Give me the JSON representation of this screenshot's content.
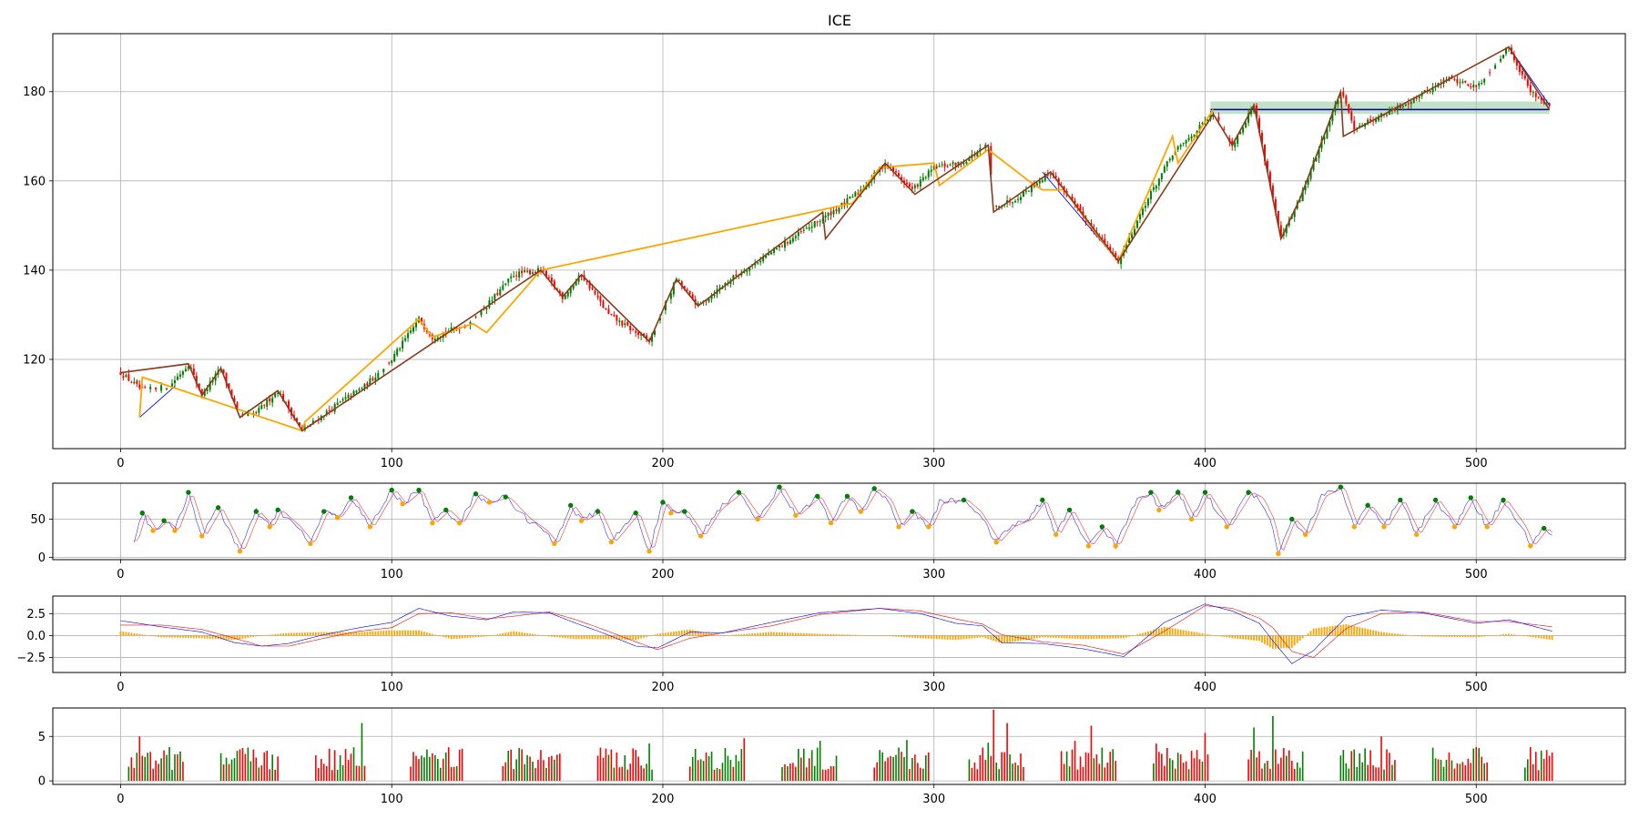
{
  "chart_data": [
    {
      "panel": "price",
      "type": "candlestick",
      "title": "ICE",
      "xlim": [
        -25,
        555
      ],
      "ylim": [
        100,
        193
      ],
      "xticks": [
        0,
        100,
        200,
        300,
        400,
        500
      ],
      "yticks": [
        120,
        140,
        160,
        180
      ],
      "grid": true,
      "colors": {
        "up": "#008000",
        "down": "#ff0000",
        "zigzag_major": "#8b3a1a",
        "zigzag_minor": "#ffa500",
        "trend": "#0000ff",
        "support_line": "#00008b",
        "support_band": "#8fc9a0"
      },
      "anchors": [
        [
          0,
          117
        ],
        [
          8,
          113
        ],
        [
          18,
          114
        ],
        [
          25,
          119
        ],
        [
          30,
          112
        ],
        [
          37,
          118
        ],
        [
          44,
          107
        ],
        [
          50,
          108
        ],
        [
          58,
          113
        ],
        [
          67,
          104
        ],
        [
          80,
          110
        ],
        [
          90,
          114
        ],
        [
          100,
          120
        ],
        [
          110,
          129
        ],
        [
          115,
          125
        ],
        [
          128,
          128
        ],
        [
          135,
          132
        ],
        [
          145,
          139
        ],
        [
          155,
          140
        ],
        [
          163,
          134
        ],
        [
          170,
          139
        ],
        [
          180,
          130
        ],
        [
          195,
          124
        ],
        [
          205,
          138
        ],
        [
          213,
          132
        ],
        [
          225,
          138
        ],
        [
          260,
          152
        ],
        [
          267,
          155
        ],
        [
          273,
          158
        ],
        [
          282,
          164
        ],
        [
          292,
          158
        ],
        [
          300,
          163
        ],
        [
          310,
          164
        ],
        [
          320,
          168
        ],
        [
          322,
          154
        ],
        [
          330,
          156
        ],
        [
          343,
          162
        ],
        [
          355,
          152
        ],
        [
          368,
          142
        ],
        [
          378,
          155
        ],
        [
          388,
          166
        ],
        [
          403,
          175
        ],
        [
          410,
          168
        ],
        [
          418,
          177
        ],
        [
          428,
          147
        ],
        [
          435,
          156
        ],
        [
          450,
          180
        ],
        [
          455,
          172
        ],
        [
          470,
          176
        ],
        [
          490,
          183
        ],
        [
          500,
          181
        ],
        [
          512,
          190
        ],
        [
          520,
          180
        ],
        [
          527,
          177
        ]
      ],
      "zigzag_major": [
        [
          0,
          117
        ],
        [
          25,
          119
        ],
        [
          30,
          112
        ],
        [
          37,
          118
        ],
        [
          44,
          107
        ],
        [
          58,
          113
        ],
        [
          67,
          104
        ],
        [
          155,
          140
        ],
        [
          163,
          134
        ],
        [
          170,
          139
        ],
        [
          195,
          124
        ],
        [
          205,
          138
        ],
        [
          213,
          132
        ],
        [
          259,
          153
        ],
        [
          260,
          147
        ],
        [
          282,
          164
        ],
        [
          293,
          157
        ],
        [
          320,
          168
        ],
        [
          322,
          153
        ],
        [
          343,
          162
        ],
        [
          368,
          142
        ],
        [
          403,
          175
        ],
        [
          410,
          168
        ],
        [
          418,
          177
        ],
        [
          428,
          147
        ],
        [
          435,
          156
        ],
        [
          450,
          180
        ],
        [
          451,
          170
        ],
        [
          512,
          190
        ],
        [
          527,
          176
        ]
      ],
      "zigzag_minor": [
        [
          7,
          107
        ],
        [
          8,
          116
        ],
        [
          67,
          104
        ],
        [
          68,
          106
        ],
        [
          110,
          129
        ],
        [
          115,
          125
        ],
        [
          130,
          128
        ],
        [
          135,
          126
        ],
        [
          155,
          140
        ],
        [
          270,
          155
        ],
        [
          280,
          163
        ],
        [
          300,
          164
        ],
        [
          302,
          159
        ],
        [
          320,
          167
        ],
        [
          335,
          160
        ],
        [
          340,
          158
        ],
        [
          348,
          158
        ],
        [
          360,
          148
        ],
        [
          368,
          142
        ],
        [
          388,
          170
        ],
        [
          390,
          164
        ],
        [
          403,
          176
        ]
      ],
      "trend_lines": [
        [
          [
            7,
            107
          ],
          [
            20,
            114
          ]
        ],
        [
          [
            67,
            104
          ],
          [
            155,
            140
          ]
        ],
        [
          [
            340,
            162
          ],
          [
            368,
            142
          ]
        ],
        [
          [
            368,
            142
          ],
          [
            403,
            175
          ]
        ],
        [
          [
            512,
            190
          ],
          [
            527,
            177
          ]
        ]
      ],
      "support_level": 176,
      "support_band": [
        175,
        177.8
      ],
      "support_x": [
        402,
        527
      ]
    },
    {
      "panel": "oscillator",
      "type": "line",
      "xlim": [
        -25,
        555
      ],
      "ylim": [
        -3,
        97
      ],
      "xticks": [
        0,
        100,
        200,
        300,
        400,
        500
      ],
      "yticks": [
        0,
        50
      ],
      "grid": true,
      "colors": {
        "fast": "#0000ff",
        "slow": "#ff0000",
        "peak": "#008000",
        "trough": "#ffa500"
      },
      "anchors": [
        [
          5,
          22
        ],
        [
          8,
          58
        ],
        [
          12,
          35
        ],
        [
          16,
          48
        ],
        [
          20,
          35
        ],
        [
          25,
          85
        ],
        [
          30,
          28
        ],
        [
          36,
          65
        ],
        [
          44,
          8
        ],
        [
          50,
          60
        ],
        [
          55,
          40
        ],
        [
          58,
          62
        ],
        [
          65,
          40
        ],
        [
          70,
          18
        ],
        [
          75,
          60
        ],
        [
          80,
          52
        ],
        [
          85,
          78
        ],
        [
          92,
          40
        ],
        [
          100,
          88
        ],
        [
          104,
          70
        ],
        [
          110,
          88
        ],
        [
          115,
          45
        ],
        [
          120,
          62
        ],
        [
          125,
          45
        ],
        [
          131,
          83
        ],
        [
          136,
          72
        ],
        [
          142,
          79
        ],
        [
          150,
          50
        ],
        [
          156,
          35
        ],
        [
          160,
          18
        ],
        [
          166,
          68
        ],
        [
          170,
          48
        ],
        [
          176,
          60
        ],
        [
          181,
          20
        ],
        [
          190,
          58
        ],
        [
          195,
          8
        ],
        [
          200,
          72
        ],
        [
          203,
          58
        ],
        [
          208,
          60
        ],
        [
          214,
          28
        ],
        [
          220,
          62
        ],
        [
          228,
          85
        ],
        [
          235,
          50
        ],
        [
          243,
          92
        ],
        [
          249,
          55
        ],
        [
          257,
          80
        ],
        [
          262,
          45
        ],
        [
          268,
          80
        ],
        [
          273,
          60
        ],
        [
          278,
          90
        ],
        [
          283,
          75
        ],
        [
          287,
          40
        ],
        [
          292,
          60
        ],
        [
          298,
          40
        ],
        [
          302,
          72
        ],
        [
          311,
          75
        ],
        [
          316,
          60
        ],
        [
          323,
          20
        ],
        [
          328,
          40
        ],
        [
          335,
          50
        ],
        [
          340,
          75
        ],
        [
          345,
          30
        ],
        [
          350,
          62
        ],
        [
          357,
          15
        ],
        [
          362,
          40
        ],
        [
          367,
          15
        ],
        [
          375,
          78
        ],
        [
          380,
          85
        ],
        [
          383,
          62
        ],
        [
          390,
          85
        ],
        [
          395,
          50
        ],
        [
          400,
          85
        ],
        [
          408,
          40
        ],
        [
          416,
          85
        ],
        [
          420,
          78
        ],
        [
          424,
          50
        ],
        [
          427,
          5
        ],
        [
          432,
          50
        ],
        [
          437,
          30
        ],
        [
          443,
          80
        ],
        [
          450,
          92
        ],
        [
          455,
          40
        ],
        [
          460,
          68
        ],
        [
          466,
          40
        ],
        [
          472,
          75
        ],
        [
          478,
          30
        ],
        [
          485,
          75
        ],
        [
          492,
          40
        ],
        [
          498,
          78
        ],
        [
          504,
          40
        ],
        [
          510,
          75
        ],
        [
          517,
          40
        ],
        [
          520,
          15
        ],
        [
          525,
          38
        ],
        [
          528,
          28
        ]
      ]
    },
    {
      "panel": "macd",
      "type": "line+bar",
      "xlim": [
        -25,
        555
      ],
      "ylim": [
        -4.2,
        4.5
      ],
      "xticks": [
        0,
        100,
        200,
        300,
        400,
        500
      ],
      "yticks": [
        2.5,
        0.0,
        -2.5
      ],
      "ytick_labels": [
        "2.5",
        "0.0",
        "−2.5"
      ],
      "grid": true,
      "colors": {
        "macd": "#0000ff",
        "signal": "#ff0000",
        "hist": "#ffa500"
      },
      "macd_anchors": [
        [
          0,
          1.7
        ],
        [
          15,
          1
        ],
        [
          30,
          0.4
        ],
        [
          42,
          -0.8
        ],
        [
          52,
          -1.2
        ],
        [
          62,
          -0.9
        ],
        [
          75,
          0.1
        ],
        [
          88,
          0.9
        ],
        [
          100,
          1.5
        ],
        [
          110,
          3.1
        ],
        [
          122,
          2.2
        ],
        [
          135,
          1.8
        ],
        [
          145,
          2.7
        ],
        [
          158,
          2.6
        ],
        [
          168,
          1.4
        ],
        [
          178,
          0.3
        ],
        [
          190,
          -1.2
        ],
        [
          198,
          -1.4
        ],
        [
          210,
          0.4
        ],
        [
          222,
          0.3
        ],
        [
          240,
          1.5
        ],
        [
          258,
          2.6
        ],
        [
          280,
          3.1
        ],
        [
          295,
          2.5
        ],
        [
          308,
          1.4
        ],
        [
          318,
          1.1
        ],
        [
          325,
          -0.8
        ],
        [
          340,
          -0.9
        ],
        [
          355,
          -1.5
        ],
        [
          370,
          -2.4
        ],
        [
          385,
          1.5
        ],
        [
          400,
          3.6
        ],
        [
          410,
          2.8
        ],
        [
          420,
          1.4
        ],
        [
          425,
          -0.6
        ],
        [
          432,
          -3.2
        ],
        [
          440,
          -1.7
        ],
        [
          452,
          2.1
        ],
        [
          465,
          2.9
        ],
        [
          480,
          2.6
        ],
        [
          500,
          1.4
        ],
        [
          512,
          1.8
        ],
        [
          528,
          0.5
        ]
      ],
      "signal_anchors": [
        [
          0,
          1.2
        ],
        [
          15,
          1.2
        ],
        [
          30,
          0.7
        ],
        [
          42,
          -0.3
        ],
        [
          52,
          -1.2
        ],
        [
          62,
          -1.2
        ],
        [
          75,
          -0.3
        ],
        [
          88,
          0.5
        ],
        [
          100,
          0.9
        ],
        [
          110,
          2.5
        ],
        [
          122,
          2.6
        ],
        [
          135,
          1.9
        ],
        [
          145,
          2.2
        ],
        [
          158,
          2.7
        ],
        [
          168,
          1.8
        ],
        [
          178,
          0.7
        ],
        [
          190,
          -0.7
        ],
        [
          198,
          -1.6
        ],
        [
          210,
          -0.3
        ],
        [
          222,
          0.3
        ],
        [
          240,
          1.1
        ],
        [
          258,
          2.4
        ],
        [
          280,
          3.1
        ],
        [
          295,
          2.8
        ],
        [
          308,
          1.9
        ],
        [
          318,
          1.3
        ],
        [
          325,
          0.1
        ],
        [
          340,
          -0.7
        ],
        [
          355,
          -1.1
        ],
        [
          370,
          -2.1
        ],
        [
          385,
          0.5
        ],
        [
          400,
          3.4
        ],
        [
          410,
          3.1
        ],
        [
          420,
          2
        ],
        [
          425,
          0.9
        ],
        [
          432,
          -1.8
        ],
        [
          440,
          -2.5
        ],
        [
          452,
          0.8
        ],
        [
          465,
          2.5
        ],
        [
          480,
          2.7
        ],
        [
          500,
          1.6
        ],
        [
          512,
          1.6
        ],
        [
          528,
          1
        ]
      ]
    },
    {
      "panel": "volume",
      "type": "bar",
      "xlim": [
        -25,
        555
      ],
      "ylim": [
        -0.4,
        8.2
      ],
      "xticks": [
        0,
        100,
        200,
        300,
        400,
        500
      ],
      "yticks": [
        0,
        5
      ],
      "grid": true,
      "colors": {
        "up": "#008000",
        "down": "#ff0000"
      },
      "clusters": [
        [
          3,
          23
        ],
        [
          37,
          58
        ],
        [
          72,
          90
        ],
        [
          107,
          126
        ],
        [
          141,
          162
        ],
        [
          176,
          196
        ],
        [
          210,
          230
        ],
        [
          244,
          264
        ],
        [
          278,
          298
        ],
        [
          313,
          333
        ],
        [
          347,
          367
        ],
        [
          381,
          401
        ],
        [
          416,
          436
        ],
        [
          450,
          470
        ],
        [
          484,
          504
        ],
        [
          518,
          528
        ]
      ],
      "spikes": [
        [
          7,
          5
        ],
        [
          18,
          3.8
        ],
        [
          45,
          3.7
        ],
        [
          89,
          6.5
        ],
        [
          100,
          3.5
        ],
        [
          120,
          3.2
        ],
        [
          150,
          2.9
        ],
        [
          195,
          4.2
        ],
        [
          230,
          4.8
        ],
        [
          258,
          4.5
        ],
        [
          290,
          4.6
        ],
        [
          320,
          4.3
        ],
        [
          322,
          8
        ],
        [
          327,
          6.5
        ],
        [
          352,
          4.5
        ],
        [
          358,
          6.2
        ],
        [
          382,
          4.2
        ],
        [
          400,
          5.4
        ],
        [
          418,
          6
        ],
        [
          425,
          7.3
        ],
        [
          465,
          5
        ]
      ]
    }
  ]
}
